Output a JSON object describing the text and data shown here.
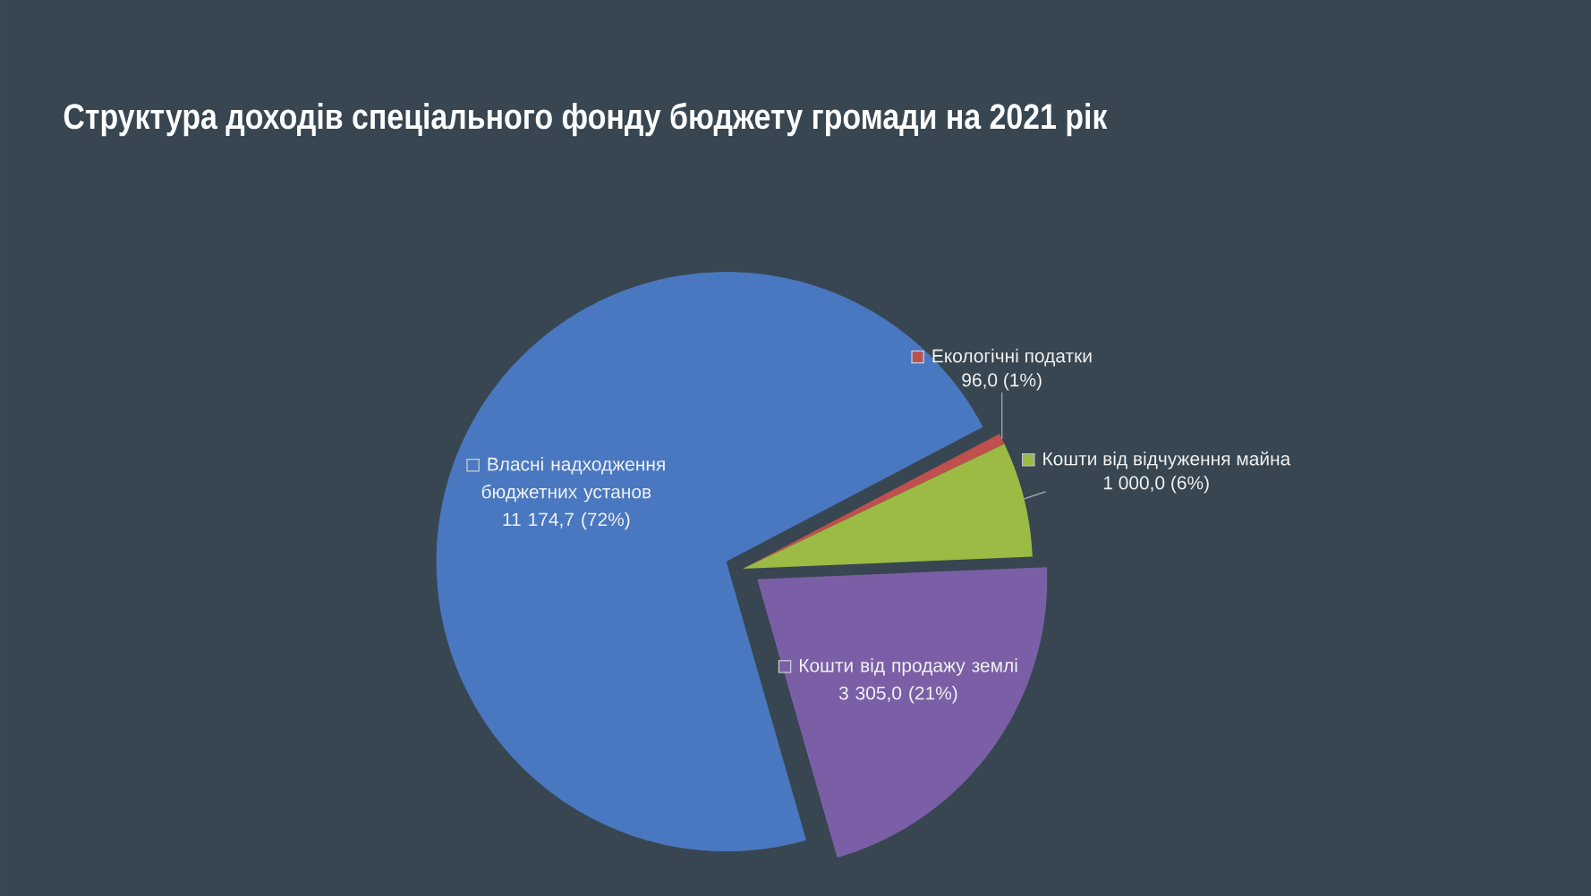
{
  "chart_data": {
    "type": "pie",
    "title": "Структура доходів спеціального фонду бюджету громади на 2021 рік",
    "categories": [
      "Власні надходження бюджетних установ",
      "Екологічні податки",
      "Кошти від відчуження майна",
      "Кошти від продажу землі"
    ],
    "values": [
      11174.7,
      96.0,
      1000.0,
      3305.0
    ],
    "colors": [
      "#4a78c0",
      "#c0504d",
      "#9bbb45",
      "#7b5fa6"
    ],
    "value_labels": [
      "11 174,7 (72%)",
      "96,0 (1%)",
      "1 000,0 (6%)",
      "3 305,0 (21%)"
    ],
    "legend": "top right"
  }
}
